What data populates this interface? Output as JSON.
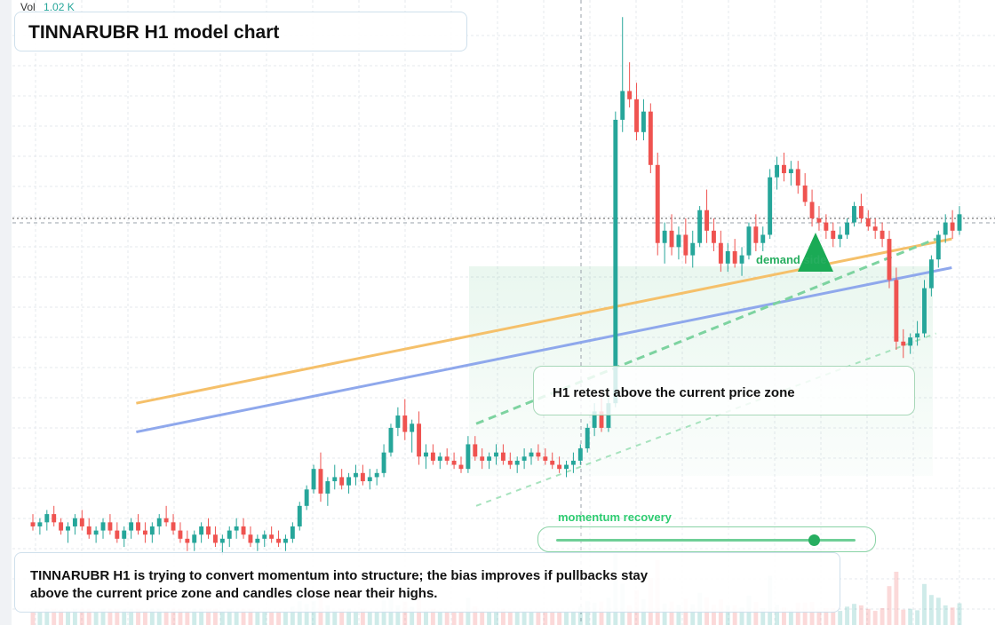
{
  "header": {
    "vol_label": "Vol",
    "vol_value": "1.02 K",
    "title": "TINNARUBR H1 model chart"
  },
  "annotations": {
    "callout": "H1 retest above the current price zone",
    "demand_label": "demand side",
    "momentum_label": "momentum recovery",
    "momentum_level": 0.86,
    "summary": "TINNARUBR H1 is trying to convert momentum into structure; the bias improves if pullbacks stay above the current price zone and candles close near their highs."
  },
  "colors": {
    "up": "#26a69a",
    "down": "#ef5350",
    "orange_line": "#f5c06a",
    "blue_line": "#8fa8ec",
    "green_accent": "#27ae60",
    "grid": "#e6e8ee"
  },
  "chart_data": {
    "type": "candlestick",
    "title": "TINNARUBR H1 model chart",
    "price_range": [
      50,
      200
    ],
    "current_price": 149.0,
    "candles": [
      {
        "o": 75,
        "h": 77,
        "l": 73,
        "c": 74
      },
      {
        "o": 74,
        "h": 76,
        "l": 72,
        "c": 75
      },
      {
        "o": 75,
        "h": 78,
        "l": 73,
        "c": 77
      },
      {
        "o": 77,
        "h": 79,
        "l": 74,
        "c": 75
      },
      {
        "o": 75,
        "h": 76,
        "l": 72,
        "c": 73
      },
      {
        "o": 73,
        "h": 75,
        "l": 70,
        "c": 74
      },
      {
        "o": 74,
        "h": 77,
        "l": 72,
        "c": 76
      },
      {
        "o": 76,
        "h": 78,
        "l": 73,
        "c": 74
      },
      {
        "o": 74,
        "h": 76,
        "l": 71,
        "c": 72
      },
      {
        "o": 72,
        "h": 74,
        "l": 70,
        "c": 73
      },
      {
        "o": 73,
        "h": 76,
        "l": 71,
        "c": 75
      },
      {
        "o": 75,
        "h": 77,
        "l": 72,
        "c": 73
      },
      {
        "o": 73,
        "h": 75,
        "l": 70,
        "c": 71
      },
      {
        "o": 71,
        "h": 74,
        "l": 69,
        "c": 73
      },
      {
        "o": 73,
        "h": 76,
        "l": 71,
        "c": 75
      },
      {
        "o": 75,
        "h": 77,
        "l": 72,
        "c": 73
      },
      {
        "o": 73,
        "h": 75,
        "l": 70,
        "c": 72
      },
      {
        "o": 72,
        "h": 75,
        "l": 70,
        "c": 74
      },
      {
        "o": 74,
        "h": 77,
        "l": 72,
        "c": 76
      },
      {
        "o": 76,
        "h": 79,
        "l": 74,
        "c": 75
      },
      {
        "o": 75,
        "h": 77,
        "l": 72,
        "c": 73
      },
      {
        "o": 73,
        "h": 75,
        "l": 70,
        "c": 71
      },
      {
        "o": 71,
        "h": 73,
        "l": 68,
        "c": 70
      },
      {
        "o": 70,
        "h": 73,
        "l": 68,
        "c": 72
      },
      {
        "o": 72,
        "h": 75,
        "l": 70,
        "c": 74
      },
      {
        "o": 74,
        "h": 76,
        "l": 71,
        "c": 72
      },
      {
        "o": 72,
        "h": 74,
        "l": 69,
        "c": 70
      },
      {
        "o": 70,
        "h": 72,
        "l": 67,
        "c": 71
      },
      {
        "o": 71,
        "h": 74,
        "l": 69,
        "c": 73
      },
      {
        "o": 73,
        "h": 76,
        "l": 71,
        "c": 74
      },
      {
        "o": 74,
        "h": 76,
        "l": 71,
        "c": 72
      },
      {
        "o": 72,
        "h": 74,
        "l": 69,
        "c": 70
      },
      {
        "o": 70,
        "h": 72,
        "l": 68,
        "c": 71
      },
      {
        "o": 71,
        "h": 73,
        "l": 69,
        "c": 72
      },
      {
        "o": 72,
        "h": 74,
        "l": 70,
        "c": 71
      },
      {
        "o": 71,
        "h": 73,
        "l": 69,
        "c": 70
      },
      {
        "o": 70,
        "h": 72,
        "l": 68,
        "c": 71
      },
      {
        "o": 71,
        "h": 75,
        "l": 70,
        "c": 74
      },
      {
        "o": 74,
        "h": 80,
        "l": 73,
        "c": 79
      },
      {
        "o": 79,
        "h": 84,
        "l": 78,
        "c": 83
      },
      {
        "o": 83,
        "h": 89,
        "l": 82,
        "c": 88
      },
      {
        "o": 88,
        "h": 92,
        "l": 80,
        "c": 82
      },
      {
        "o": 82,
        "h": 86,
        "l": 79,
        "c": 85
      },
      {
        "o": 85,
        "h": 89,
        "l": 83,
        "c": 86
      },
      {
        "o": 86,
        "h": 88,
        "l": 83,
        "c": 84
      },
      {
        "o": 84,
        "h": 87,
        "l": 82,
        "c": 86
      },
      {
        "o": 86,
        "h": 89,
        "l": 84,
        "c": 87
      },
      {
        "o": 87,
        "h": 89,
        "l": 84,
        "c": 85
      },
      {
        "o": 85,
        "h": 88,
        "l": 83,
        "c": 86
      },
      {
        "o": 86,
        "h": 88,
        "l": 84,
        "c": 87
      },
      {
        "o": 87,
        "h": 94,
        "l": 86,
        "c": 92
      },
      {
        "o": 92,
        "h": 99,
        "l": 91,
        "c": 98
      },
      {
        "o": 98,
        "h": 103,
        "l": 96,
        "c": 101
      },
      {
        "o": 101,
        "h": 105,
        "l": 95,
        "c": 97
      },
      {
        "o": 97,
        "h": 100,
        "l": 92,
        "c": 99
      },
      {
        "o": 99,
        "h": 102,
        "l": 89,
        "c": 91
      },
      {
        "o": 91,
        "h": 94,
        "l": 88,
        "c": 92
      },
      {
        "o": 92,
        "h": 94,
        "l": 89,
        "c": 90
      },
      {
        "o": 90,
        "h": 92,
        "l": 88,
        "c": 91
      },
      {
        "o": 91,
        "h": 93,
        "l": 89,
        "c": 90
      },
      {
        "o": 90,
        "h": 92,
        "l": 88,
        "c": 89
      },
      {
        "o": 89,
        "h": 91,
        "l": 87,
        "c": 88
      },
      {
        "o": 88,
        "h": 96,
        "l": 87,
        "c": 94
      },
      {
        "o": 94,
        "h": 96,
        "l": 90,
        "c": 91
      },
      {
        "o": 91,
        "h": 93,
        "l": 88,
        "c": 90
      },
      {
        "o": 90,
        "h": 92,
        "l": 88,
        "c": 91
      },
      {
        "o": 91,
        "h": 94,
        "l": 89,
        "c": 92
      },
      {
        "o": 92,
        "h": 94,
        "l": 89,
        "c": 90
      },
      {
        "o": 90,
        "h": 92,
        "l": 88,
        "c": 89
      },
      {
        "o": 89,
        "h": 91,
        "l": 87,
        "c": 90
      },
      {
        "o": 90,
        "h": 93,
        "l": 88,
        "c": 91
      },
      {
        "o": 91,
        "h": 93,
        "l": 89,
        "c": 92
      },
      {
        "o": 92,
        "h": 94,
        "l": 90,
        "c": 91
      },
      {
        "o": 91,
        "h": 93,
        "l": 89,
        "c": 90
      },
      {
        "o": 90,
        "h": 92,
        "l": 88,
        "c": 89
      },
      {
        "o": 89,
        "h": 91,
        "l": 87,
        "c": 88
      },
      {
        "o": 88,
        "h": 90,
        "l": 86,
        "c": 89
      },
      {
        "o": 89,
        "h": 92,
        "l": 87,
        "c": 90
      },
      {
        "o": 90,
        "h": 94,
        "l": 89,
        "c": 93
      },
      {
        "o": 93,
        "h": 99,
        "l": 92,
        "c": 98
      },
      {
        "o": 98,
        "h": 104,
        "l": 96,
        "c": 102
      },
      {
        "o": 102,
        "h": 107,
        "l": 97,
        "c": 98
      },
      {
        "o": 98,
        "h": 106,
        "l": 97,
        "c": 104
      },
      {
        "o": 104,
        "h": 175,
        "l": 103,
        "c": 173
      },
      {
        "o": 173,
        "h": 198,
        "l": 170,
        "c": 180
      },
      {
        "o": 180,
        "h": 187,
        "l": 176,
        "c": 178
      },
      {
        "o": 178,
        "h": 182,
        "l": 168,
        "c": 170
      },
      {
        "o": 170,
        "h": 178,
        "l": 168,
        "c": 175
      },
      {
        "o": 175,
        "h": 177,
        "l": 160,
        "c": 162
      },
      {
        "o": 162,
        "h": 165,
        "l": 140,
        "c": 143
      },
      {
        "o": 143,
        "h": 148,
        "l": 138,
        "c": 146
      },
      {
        "o": 146,
        "h": 150,
        "l": 140,
        "c": 142
      },
      {
        "o": 142,
        "h": 147,
        "l": 139,
        "c": 145
      },
      {
        "o": 145,
        "h": 149,
        "l": 138,
        "c": 140
      },
      {
        "o": 140,
        "h": 146,
        "l": 137,
        "c": 143
      },
      {
        "o": 143,
        "h": 152,
        "l": 142,
        "c": 151
      },
      {
        "o": 151,
        "h": 156,
        "l": 143,
        "c": 146
      },
      {
        "o": 146,
        "h": 149,
        "l": 141,
        "c": 143
      },
      {
        "o": 143,
        "h": 146,
        "l": 136,
        "c": 138
      },
      {
        "o": 138,
        "h": 143,
        "l": 136,
        "c": 141
      },
      {
        "o": 141,
        "h": 144,
        "l": 137,
        "c": 138
      },
      {
        "o": 138,
        "h": 142,
        "l": 135,
        "c": 140
      },
      {
        "o": 140,
        "h": 148,
        "l": 139,
        "c": 147
      },
      {
        "o": 147,
        "h": 150,
        "l": 141,
        "c": 143
      },
      {
        "o": 143,
        "h": 147,
        "l": 141,
        "c": 145
      },
      {
        "o": 145,
        "h": 161,
        "l": 144,
        "c": 159
      },
      {
        "o": 159,
        "h": 164,
        "l": 156,
        "c": 162
      },
      {
        "o": 162,
        "h": 165,
        "l": 158,
        "c": 160
      },
      {
        "o": 160,
        "h": 163,
        "l": 157,
        "c": 161
      },
      {
        "o": 161,
        "h": 163,
        "l": 155,
        "c": 157
      },
      {
        "o": 157,
        "h": 160,
        "l": 152,
        "c": 153
      },
      {
        "o": 153,
        "h": 156,
        "l": 147,
        "c": 149
      },
      {
        "o": 149,
        "h": 152,
        "l": 146,
        "c": 148
      },
      {
        "o": 148,
        "h": 150,
        "l": 144,
        "c": 146
      },
      {
        "o": 146,
        "h": 148,
        "l": 142,
        "c": 144
      },
      {
        "o": 144,
        "h": 147,
        "l": 142,
        "c": 145
      },
      {
        "o": 145,
        "h": 149,
        "l": 144,
        "c": 148
      },
      {
        "o": 148,
        "h": 153,
        "l": 147,
        "c": 152
      },
      {
        "o": 152,
        "h": 155,
        "l": 148,
        "c": 149
      },
      {
        "o": 149,
        "h": 151,
        "l": 146,
        "c": 147
      },
      {
        "o": 147,
        "h": 149,
        "l": 144,
        "c": 146
      },
      {
        "o": 146,
        "h": 148,
        "l": 142,
        "c": 144
      },
      {
        "o": 144,
        "h": 146,
        "l": 132,
        "c": 134
      },
      {
        "o": 134,
        "h": 137,
        "l": 117,
        "c": 119
      },
      {
        "o": 119,
        "h": 122,
        "l": 115,
        "c": 118
      },
      {
        "o": 118,
        "h": 121,
        "l": 116,
        "c": 120
      },
      {
        "o": 120,
        "h": 124,
        "l": 118,
        "c": 121
      },
      {
        "o": 121,
        "h": 134,
        "l": 120,
        "c": 132
      },
      {
        "o": 132,
        "h": 140,
        "l": 130,
        "c": 139
      },
      {
        "o": 139,
        "h": 146,
        "l": 137,
        "c": 145
      },
      {
        "o": 145,
        "h": 150,
        "l": 143,
        "c": 148
      },
      {
        "o": 148,
        "h": 151,
        "l": 144,
        "c": 146
      },
      {
        "o": 146,
        "h": 152,
        "l": 145,
        "c": 150
      }
    ],
    "overlays": {
      "orange_trend": [
        [
          0.126,
          104
        ],
        [
          0.956,
          144
        ]
      ],
      "blue_trend": [
        [
          0.126,
          97
        ],
        [
          0.956,
          137
        ]
      ],
      "green_channel_upper": [
        [
          0.472,
          99
        ],
        [
          0.94,
          144
        ]
      ],
      "green_channel_lower": [
        [
          0.472,
          79
        ],
        [
          0.94,
          121
        ]
      ]
    }
  }
}
